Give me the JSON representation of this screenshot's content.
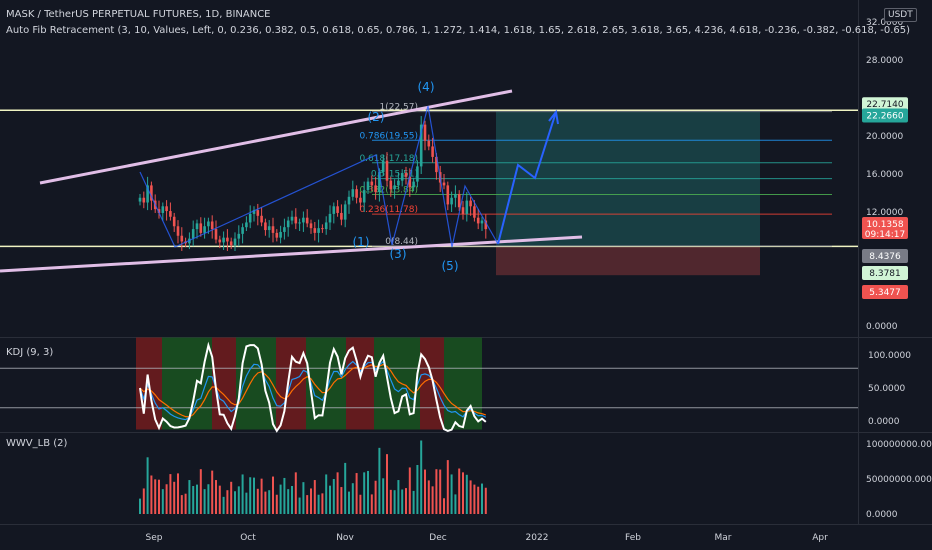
{
  "header": {
    "title": "MASK / TetherUS PERPETUAL FUTURES, 1D, BINANCE",
    "indicator": "Auto Fib Retracement (3, 10, Values, Left, 0, 0.236, 0.382, 0.5, 0.618, 0.65, 0.786, 1, 1.272, 1.414, 1.618, 1.65, 2.618, 2.65, 3.618, 3.65, 4.236, 4.618, -0.236, -0.382, -0.618, -0.65)"
  },
  "currency": "USDT",
  "price_axis": {
    "ticks": [
      "32.0000",
      "28.0000",
      "24.0000",
      "20.0000",
      "16.0000",
      "12.0000",
      "8.0000",
      "0.0000"
    ]
  },
  "price_tags": [
    {
      "text": "22.7140",
      "bg": "#d1f5d6",
      "fg": "#131722",
      "value": 22.714
    },
    {
      "text": "22.2660",
      "bg": "#26a69a",
      "fg": "#ffffff",
      "value": 22.266
    },
    {
      "text": "10.1358",
      "bg": "#ef5350",
      "fg": "#ffffff",
      "value": 10.1358,
      "sub": "09:14:17"
    },
    {
      "text": "8.4376",
      "bg": "#787b86",
      "fg": "#ffffff",
      "value": 8.4376
    },
    {
      "text": "8.3781",
      "bg": "#d1f5d6",
      "fg": "#131722",
      "value": 8.3781
    },
    {
      "text": "5.3477",
      "bg": "#ef5350",
      "fg": "#ffffff",
      "value": 5.3477
    }
  ],
  "fib_labels": [
    {
      "text": "1(22.57)",
      "value": 22.57
    },
    {
      "text": "0.786(19.55)",
      "value": 19.55
    },
    {
      "text": "0.618(17.18)",
      "value": 17.18
    },
    {
      "text": "0.5(15.51)",
      "value": 15.51
    },
    {
      "text": "0.382(13.84)",
      "value": 13.84
    },
    {
      "text": "0.236(11.78)",
      "value": 11.78
    },
    {
      "text": "0(8.44)",
      "value": 8.44
    }
  ],
  "wave_labels": [
    "(1)",
    "(2)",
    "(3)",
    "(4)",
    "(5)"
  ],
  "time_axis": [
    "Sep",
    "Oct",
    "Nov",
    "Dec",
    "2022",
    "Feb",
    "Mar",
    "Apr"
  ],
  "kdj": {
    "title": "KDJ (9, 3)",
    "ticks": [
      "100.0000",
      "50.0000",
      "0.0000"
    ]
  },
  "wwv": {
    "title": "WWV_LB (2)",
    "ticks": [
      "100000000.0000",
      "50000000.0000",
      "0.0000"
    ]
  },
  "colors": {
    "background": "#131722",
    "up": "#26a69a",
    "down": "#ef5350",
    "trendline": "#e1bee7",
    "wave": "#2962ff",
    "horizontal": "#f0f4c3"
  },
  "chart_data": {
    "type": "candlestick",
    "symbol": "MASKUSDT",
    "timeframe": "1D",
    "ylim": [
      0,
      32
    ],
    "current_price": 10.1358,
    "fib_levels": [
      {
        "ratio": 1,
        "price": 22.57
      },
      {
        "ratio": 0.786,
        "price": 19.55
      },
      {
        "ratio": 0.618,
        "price": 17.18
      },
      {
        "ratio": 0.5,
        "price": 15.51
      },
      {
        "ratio": 0.382,
        "price": 13.84
      },
      {
        "ratio": 0.236,
        "price": 11.78
      },
      {
        "ratio": 0,
        "price": 8.44
      }
    ],
    "closes": [
      13.5,
      13.0,
      14.8,
      13.2,
      12.3,
      11.9,
      12.6,
      12.1,
      11.5,
      10.5,
      9.5,
      8.9,
      8.7,
      9.2,
      10.2,
      10.8,
      9.8,
      10.5,
      11.0,
      10.2,
      9.1,
      8.8,
      9.3,
      8.9,
      8.5,
      9.2,
      9.7,
      10.4,
      10.9,
      11.8,
      12.2,
      11.6,
      10.9,
      10.1,
      10.5,
      9.8,
      9.3,
      9.9,
      10.4,
      11.1,
      11.5,
      10.8,
      10.9,
      11.4,
      10.8,
      10.3,
      9.8,
      10.3,
      10.2,
      10.9,
      11.8,
      12.6,
      11.9,
      11.2,
      12.8,
      13.6,
      14.4,
      13.5,
      13.0,
      14.3,
      15.2,
      14.8,
      14.1,
      16.2,
      17.4,
      15.3,
      14.4,
      14.8,
      15.3,
      16.1,
      15.7,
      14.6,
      15.2,
      16.8,
      21.2,
      19.5,
      18.9,
      17.8,
      16.2,
      15.1,
      14.8,
      12.8,
      13.5,
      13.9,
      12.5,
      11.8,
      13.2,
      12.6,
      11.4,
      10.8,
      11.1,
      10.2
    ],
    "kdj": {
      "ylim": [
        -20,
        120
      ],
      "bands": [
        80,
        20
      ]
    },
    "volume_ylim": [
      0,
      110000000
    ]
  }
}
